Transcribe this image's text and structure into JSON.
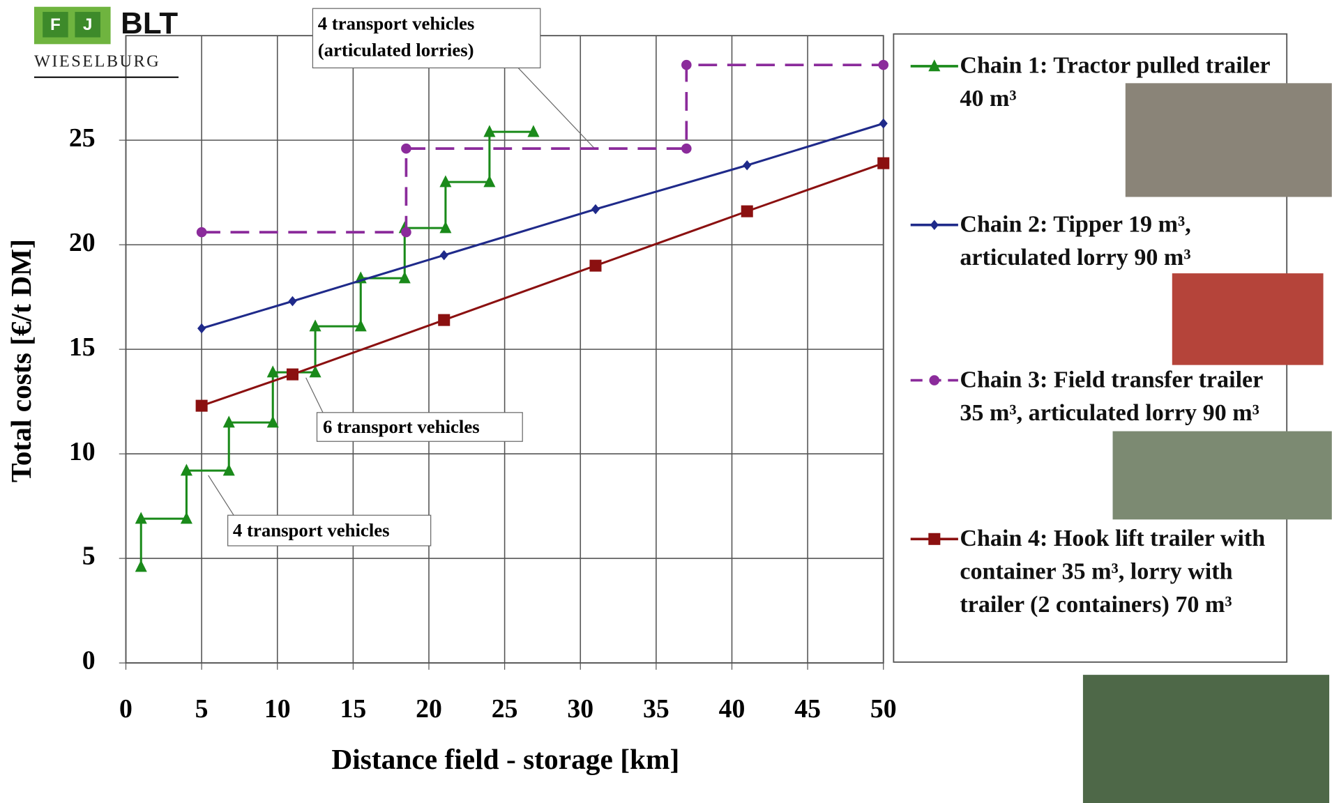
{
  "logo": {
    "letters": [
      "F",
      "J"
    ],
    "name": "BLT",
    "place": "WIESELBURG"
  },
  "chart_data": {
    "type": "line",
    "xlabel": "Distance field - storage [km]",
    "ylabel": "Total costs [€/t DM]",
    "xlim": [
      0,
      50
    ],
    "xticks": [
      0,
      5,
      10,
      15,
      20,
      25,
      30,
      35,
      40,
      45,
      50
    ],
    "ylim": [
      0,
      30
    ],
    "yticks": [
      0,
      5,
      10,
      15,
      20,
      25
    ],
    "grid": true,
    "legend": "right",
    "series": [
      {
        "name": "Chain 1: Tractor pulled trailer 40 m³",
        "color": "#1a8a1a",
        "marker": "triangle",
        "dash": false,
        "x": [
          1,
          1,
          4,
          4,
          6.8,
          6.8,
          9.7,
          9.7,
          12.5,
          12.5,
          15.5,
          15.5,
          18.4,
          18.4,
          21.1,
          21.1,
          24,
          24,
          26.9
        ],
        "values": [
          4.6,
          6.9,
          6.9,
          9.2,
          9.2,
          11.5,
          11.5,
          13.9,
          13.9,
          16.1,
          16.1,
          18.4,
          18.4,
          20.8,
          20.8,
          23,
          23,
          25.4,
          25.4
        ]
      },
      {
        "name": "Chain 2: Tipper 19 m³, articulated lorry 90 m³",
        "color": "#1f2a8a",
        "marker": "diamond",
        "dash": false,
        "x": [
          5,
          11,
          21,
          31,
          41,
          50
        ],
        "values": [
          16,
          17.3,
          19.5,
          21.7,
          23.8,
          25.8
        ]
      },
      {
        "name": "Chain 3: Field transfer trailer 35 m³, articulated lorry 90 m³",
        "color": "#8b2b9b",
        "marker": "circle",
        "dash": true,
        "x": [
          5,
          18.5,
          18.5,
          37,
          37,
          50
        ],
        "values": [
          20.6,
          20.6,
          24.6,
          24.6,
          28.6,
          28.6
        ]
      },
      {
        "name": "Chain 4: Hook lift trailer with container 35 m³, lorry with trailer (2 containers) 70 m³",
        "color": "#8b1010",
        "marker": "square",
        "dash": false,
        "x": [
          5,
          11,
          21,
          31,
          41,
          50
        ],
        "values": [
          12.3,
          13.8,
          16.4,
          19,
          21.6,
          23.9
        ]
      }
    ],
    "annotations": [
      {
        "lines": [
          "4 transport vehicles",
          "(articulated lorries)"
        ]
      },
      {
        "lines": [
          "6 transport vehicles"
        ]
      },
      {
        "lines": [
          "4 transport vehicles"
        ]
      }
    ]
  }
}
